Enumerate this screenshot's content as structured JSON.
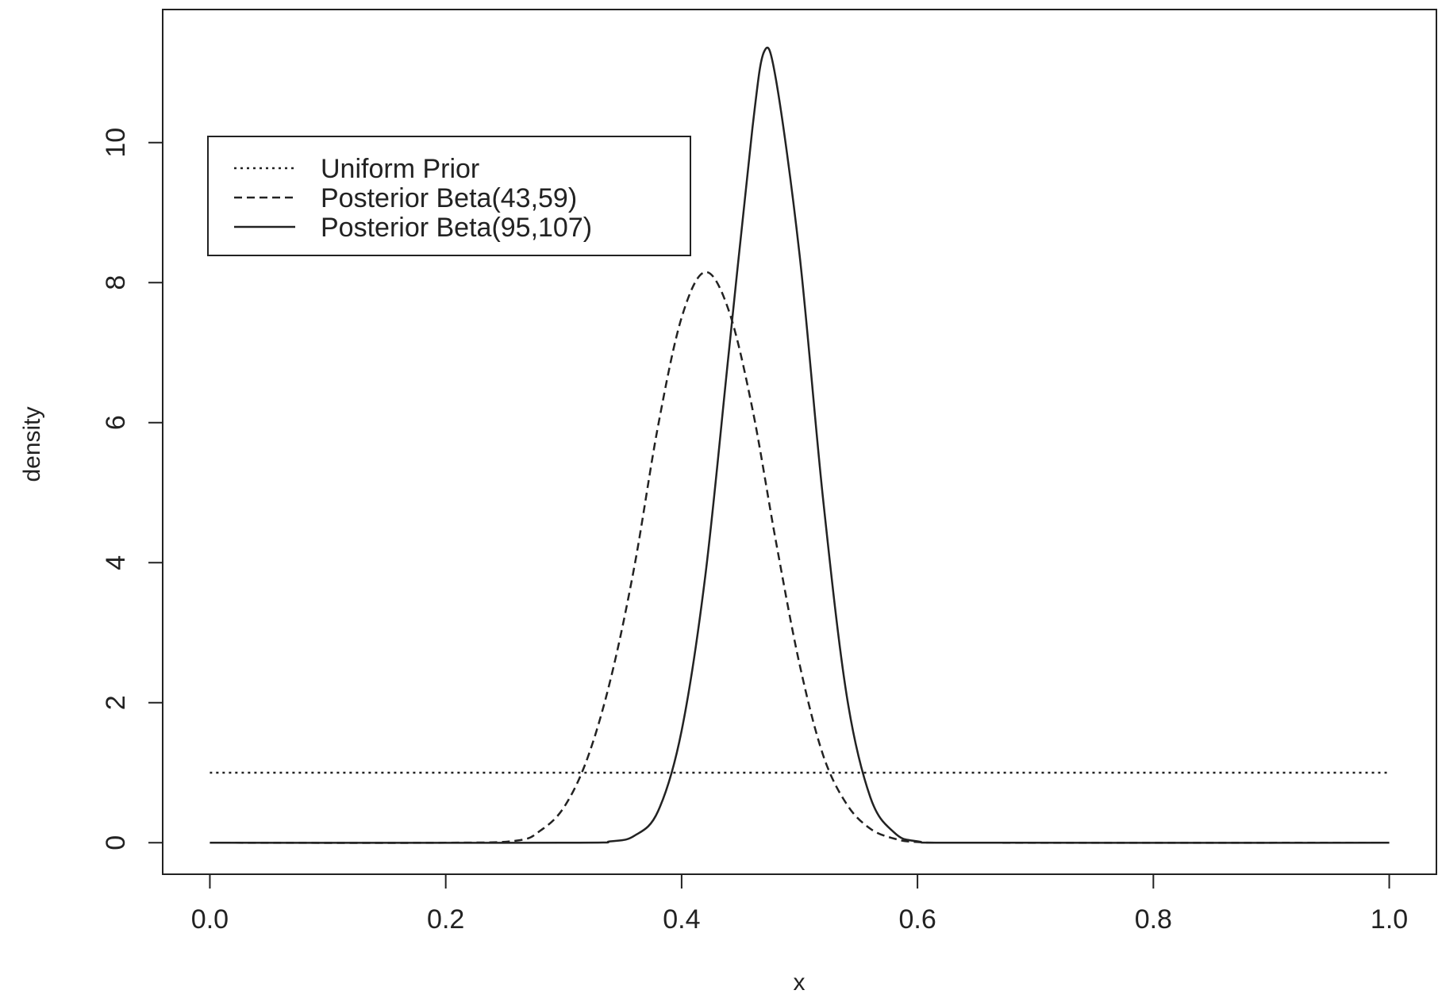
{
  "chart_data": {
    "type": "line",
    "xlabel": "x",
    "ylabel": "density",
    "xlim": [
      -0.04,
      1.04
    ],
    "ylim": [
      -0.45,
      11.9
    ],
    "x_ticks": [
      0.0,
      0.2,
      0.4,
      0.6,
      0.8,
      1.0
    ],
    "x_tick_labels": [
      "0.0",
      "0.2",
      "0.4",
      "0.6",
      "0.8",
      "1.0"
    ],
    "y_ticks": [
      0,
      2,
      4,
      6,
      8,
      10
    ],
    "y_tick_labels": [
      "0",
      "2",
      "4",
      "6",
      "8",
      "10"
    ],
    "grid": false,
    "legend_position": "top-left",
    "line_color": "#222222",
    "series": [
      {
        "name": "Uniform Prior",
        "line_style": "dotted",
        "x": [
          0.0,
          1.0
        ],
        "y": [
          1.0,
          1.0
        ]
      },
      {
        "name": "Posterior Beta(43,59)",
        "line_style": "dashed",
        "x": [
          0.0,
          0.2,
          0.26,
          0.28,
          0.3,
          0.32,
          0.34,
          0.36,
          0.38,
          0.4,
          0.42,
          0.44,
          0.46,
          0.48,
          0.5,
          0.52,
          0.54,
          0.56,
          0.58,
          0.6,
          0.65,
          1.0
        ],
        "y": [
          0.0,
          0.0,
          0.03,
          0.17,
          0.5,
          1.2,
          2.35,
          3.95,
          5.95,
          7.5,
          8.15,
          7.6,
          6.2,
          4.3,
          2.55,
          1.25,
          0.55,
          0.2,
          0.06,
          0.01,
          0.0,
          0.0
        ]
      },
      {
        "name": "Posterior Beta(95,107)",
        "line_style": "solid",
        "x": [
          0.0,
          0.3,
          0.34,
          0.36,
          0.38,
          0.4,
          0.42,
          0.44,
          0.46,
          0.47,
          0.48,
          0.5,
          0.52,
          0.54,
          0.56,
          0.58,
          0.6,
          0.65,
          1.0
        ],
        "y": [
          0.0,
          0.0,
          0.02,
          0.1,
          0.45,
          1.6,
          3.8,
          7.0,
          10.2,
          11.3,
          10.9,
          8.4,
          4.9,
          2.1,
          0.65,
          0.15,
          0.02,
          0.0,
          0.0
        ]
      }
    ]
  }
}
